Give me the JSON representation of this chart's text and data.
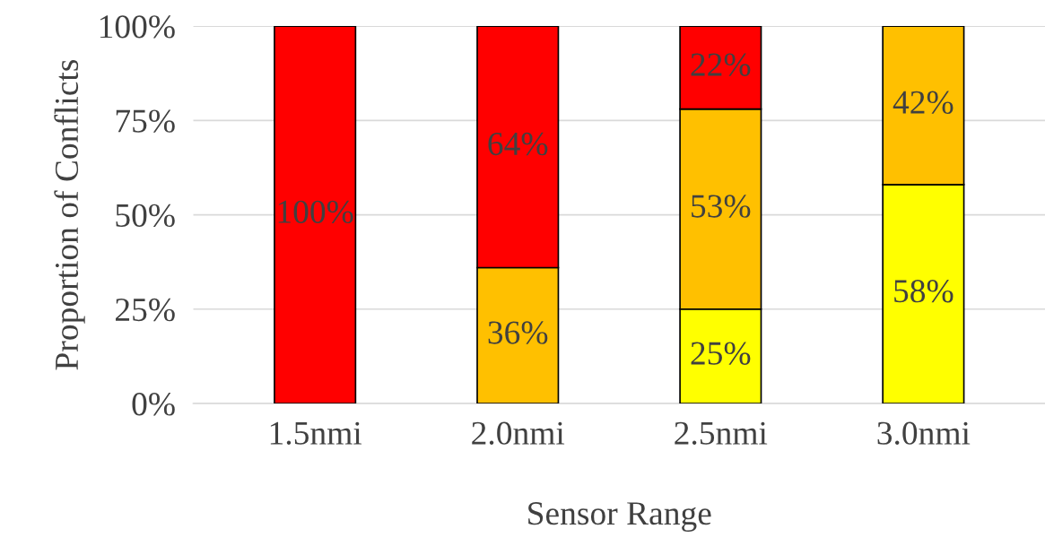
{
  "chart_data": {
    "type": "bar",
    "stacked": true,
    "xlabel": "Sensor Range",
    "ylabel": "Proportion of Conflicts",
    "categories": [
      "1.5nmi",
      "2.0nmi",
      "2.5nmi",
      "3.0nmi"
    ],
    "series": [
      {
        "color": "#ffff00",
        "values": [
          null,
          null,
          25,
          58
        ],
        "value_labels": [
          null,
          null,
          "25%",
          "58%"
        ]
      },
      {
        "color": "#ffc000",
        "values": [
          null,
          36,
          53,
          42
        ],
        "value_labels": [
          null,
          "36%",
          "53%",
          "42%"
        ]
      },
      {
        "color": "#ff0000",
        "values": [
          100,
          64,
          22,
          null
        ],
        "value_labels": [
          "100%",
          "64%",
          "22%",
          null
        ]
      }
    ],
    "ylim": [
      0,
      100
    ],
    "yticks": [
      {
        "value": 0,
        "label": "0%"
      },
      {
        "value": 25,
        "label": "25%"
      },
      {
        "value": 50,
        "label": "50%"
      },
      {
        "value": 75,
        "label": "75%"
      },
      {
        "value": 100,
        "label": "100%"
      }
    ],
    "grid": "y",
    "legend": false
  }
}
